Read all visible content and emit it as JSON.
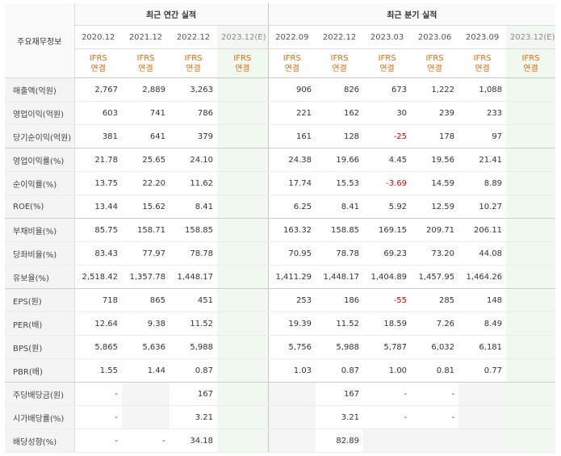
{
  "header": {
    "corner_label": "주요재무정보",
    "annual_title": "최근 연간 실적",
    "quarter_title": "최근 분기 실적",
    "periods": [
      "2020.12",
      "2021.12",
      "2022.12",
      "2023.12(E)",
      "2022.09",
      "2022.12",
      "2023.03",
      "2023.06",
      "2023.09",
      "2023.12(E)"
    ],
    "basis_line1": "IFRS",
    "basis_line2": "연결"
  },
  "rows": [
    {
      "label": "매출액(억원)",
      "values": [
        "2,767",
        "2,889",
        "3,263",
        "",
        "906",
        "826",
        "673",
        "1,222",
        "1,088",
        ""
      ]
    },
    {
      "label": "영업이익(억원)",
      "values": [
        "603",
        "741",
        "786",
        "",
        "221",
        "162",
        "30",
        "239",
        "233",
        ""
      ]
    },
    {
      "label": "당기순이익(억원)",
      "values": [
        "381",
        "641",
        "379",
        "",
        "161",
        "128",
        "-25",
        "178",
        "97",
        ""
      ]
    },
    {
      "label": "영업이익률(%)",
      "values": [
        "21.78",
        "25.65",
        "24.10",
        "",
        "24.38",
        "19.66",
        "4.45",
        "19.56",
        "21.41",
        ""
      ]
    },
    {
      "label": "순이익률(%)",
      "values": [
        "13.75",
        "22.20",
        "11.62",
        "",
        "17.74",
        "15.53",
        "-3.69",
        "14.59",
        "8.89",
        ""
      ]
    },
    {
      "label": "ROE(%)",
      "values": [
        "13.44",
        "15.62",
        "8.41",
        "",
        "6.25",
        "8.41",
        "5.92",
        "12.59",
        "10.27",
        ""
      ]
    },
    {
      "label": "부채비율(%)",
      "values": [
        "85.75",
        "158.71",
        "158.85",
        "",
        "163.32",
        "158.85",
        "169.15",
        "209.71",
        "206.11",
        ""
      ]
    },
    {
      "label": "당좌비율(%)",
      "values": [
        "83.43",
        "77.97",
        "78.78",
        "",
        "70.95",
        "78.78",
        "69.23",
        "73.20",
        "44.08",
        ""
      ]
    },
    {
      "label": "유보율(%)",
      "values": [
        "2,518.42",
        "1,357.78",
        "1,448.17",
        "",
        "1,411.29",
        "1,448.17",
        "1,404.89",
        "1,457.95",
        "1,464.26",
        ""
      ]
    },
    {
      "label": "EPS(원)",
      "values": [
        "718",
        "865",
        "451",
        "",
        "253",
        "186",
        "-55",
        "285",
        "148",
        ""
      ]
    },
    {
      "label": "PER(배)",
      "values": [
        "12.64",
        "9.38",
        "11.52",
        "",
        "19.39",
        "11.52",
        "18.59",
        "7.26",
        "8.49",
        ""
      ]
    },
    {
      "label": "BPS(원)",
      "values": [
        "5,865",
        "5,636",
        "5,988",
        "",
        "5,756",
        "5,988",
        "5,787",
        "6,032",
        "6,181",
        ""
      ]
    },
    {
      "label": "PBR(배)",
      "values": [
        "1.55",
        "1.44",
        "0.87",
        "",
        "1.03",
        "0.87",
        "1.00",
        "0.81",
        "0.77",
        ""
      ]
    },
    {
      "label": "주당배당금(원)",
      "values": [
        "-",
        "",
        "167",
        "",
        "",
        "167",
        "-",
        "-",
        "",
        ""
      ]
    },
    {
      "label": "시가배당률(%)",
      "values": [
        "-",
        "",
        "3.21",
        "",
        "",
        "3.21",
        "-",
        "-",
        "",
        ""
      ]
    },
    {
      "label": "배당성향(%)",
      "values": [
        "-",
        "-",
        "34.18",
        "",
        "",
        "82.89",
        "",
        "",
        "",
        ""
      ]
    }
  ],
  "colors": {
    "negative": "#e00000",
    "basis": "#e26a0e",
    "estimate_bg": "#f1f8ef"
  }
}
